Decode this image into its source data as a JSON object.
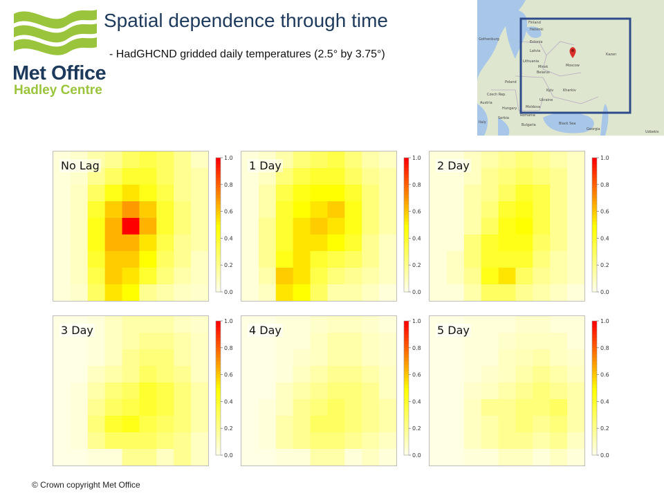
{
  "header": {
    "title": "Spatial dependence through time",
    "subtitle": "- HadGHCND gridded daily temperatures (2.5° by 3.75°)"
  },
  "logo": {
    "line1": "Met Office",
    "line2": "Hadley Centre",
    "colors": {
      "wave": "#9ac43c",
      "text": "#1d3a5c"
    }
  },
  "map": {
    "labels": [
      "Finland",
      "Helsinki",
      "Estonia",
      "Latvia",
      "Lithuania",
      "Belarus",
      "Minsk",
      "Moscow",
      "Kazan",
      "Poland",
      "Ukraine",
      "Kyiv",
      "Kharkiv",
      "Moldova",
      "Romania",
      "Hungary",
      "Serbia",
      "Bulgaria",
      "Italy",
      "Black Sea",
      "Georgia",
      "Gothenburg",
      "Czech Rep.",
      "Austria",
      "Uzbekis"
    ],
    "region_color": "#2d4a8a",
    "marker_color": "#d9302c"
  },
  "chart_data": {
    "type": "heatmap",
    "colormap": {
      "low_color": "#ffffff",
      "mid_color": "#ffff00",
      "high_color": "#ff0000"
    },
    "colorbar_ticks": [
      "0.0",
      "0.2",
      "0.4",
      "0.6",
      "0.8",
      "1.0"
    ],
    "panels": [
      {
        "label": "No Lag",
        "values": [
          [
            0.05,
            0.08,
            0.15,
            0.2,
            0.3,
            0.35,
            0.3,
            0.2,
            0.1
          ],
          [
            0.05,
            0.08,
            0.2,
            0.3,
            0.4,
            0.4,
            0.3,
            0.2,
            0.15
          ],
          [
            0.05,
            0.1,
            0.3,
            0.45,
            0.55,
            0.45,
            0.35,
            0.2,
            0.15
          ],
          [
            0.05,
            0.1,
            0.4,
            0.6,
            0.7,
            0.6,
            0.4,
            0.25,
            0.15
          ],
          [
            0.05,
            0.1,
            0.45,
            0.65,
            1.0,
            0.65,
            0.4,
            0.25,
            0.15
          ],
          [
            0.05,
            0.1,
            0.45,
            0.65,
            0.65,
            0.55,
            0.35,
            0.2,
            0.15
          ],
          [
            0.05,
            0.1,
            0.4,
            0.6,
            0.6,
            0.5,
            0.3,
            0.2,
            0.1
          ],
          [
            0.05,
            0.1,
            0.35,
            0.6,
            0.55,
            0.4,
            0.25,
            0.15,
            0.1
          ],
          [
            0.05,
            0.08,
            0.3,
            0.55,
            0.5,
            0.2,
            0.15,
            0.1,
            0.08
          ]
        ]
      },
      {
        "label": "1 Day",
        "values": [
          [
            0.05,
            0.08,
            0.15,
            0.25,
            0.3,
            0.35,
            0.25,
            0.15,
            0.1
          ],
          [
            0.05,
            0.1,
            0.25,
            0.35,
            0.4,
            0.4,
            0.3,
            0.2,
            0.15
          ],
          [
            0.05,
            0.15,
            0.35,
            0.45,
            0.5,
            0.5,
            0.4,
            0.25,
            0.15
          ],
          [
            0.05,
            0.15,
            0.4,
            0.5,
            0.55,
            0.6,
            0.45,
            0.25,
            0.15
          ],
          [
            0.05,
            0.2,
            0.4,
            0.55,
            0.6,
            0.55,
            0.45,
            0.25,
            0.15
          ],
          [
            0.05,
            0.2,
            0.4,
            0.55,
            0.55,
            0.5,
            0.4,
            0.2,
            0.1
          ],
          [
            0.05,
            0.2,
            0.45,
            0.55,
            0.4,
            0.35,
            0.3,
            0.2,
            0.1
          ],
          [
            0.05,
            0.15,
            0.6,
            0.55,
            0.35,
            0.25,
            0.2,
            0.15,
            0.1
          ],
          [
            0.05,
            0.1,
            0.55,
            0.5,
            0.3,
            0.15,
            0.15,
            0.1,
            0.05
          ]
        ]
      },
      {
        "label": "2 Day",
        "values": [
          [
            0.05,
            0.05,
            0.1,
            0.15,
            0.2,
            0.25,
            0.2,
            0.15,
            0.1
          ],
          [
            0.05,
            0.05,
            0.1,
            0.2,
            0.25,
            0.3,
            0.25,
            0.2,
            0.1
          ],
          [
            0.05,
            0.05,
            0.15,
            0.2,
            0.3,
            0.4,
            0.35,
            0.2,
            0.1
          ],
          [
            0.05,
            0.05,
            0.15,
            0.25,
            0.4,
            0.45,
            0.35,
            0.2,
            0.1
          ],
          [
            0.05,
            0.05,
            0.15,
            0.3,
            0.45,
            0.5,
            0.35,
            0.2,
            0.1
          ],
          [
            0.05,
            0.05,
            0.25,
            0.4,
            0.45,
            0.45,
            0.3,
            0.2,
            0.1
          ],
          [
            0.05,
            0.1,
            0.25,
            0.4,
            0.4,
            0.4,
            0.25,
            0.15,
            0.1
          ],
          [
            0.05,
            0.1,
            0.2,
            0.45,
            0.55,
            0.3,
            0.2,
            0.15,
            0.1
          ],
          [
            0.05,
            0.05,
            0.15,
            0.3,
            0.3,
            0.2,
            0.15,
            0.1,
            0.05
          ]
        ]
      },
      {
        "label": "3 Day",
        "values": [
          [
            0.03,
            0.03,
            0.05,
            0.1,
            0.15,
            0.15,
            0.15,
            0.1,
            0.08
          ],
          [
            0.03,
            0.03,
            0.05,
            0.1,
            0.15,
            0.2,
            0.2,
            0.15,
            0.1
          ],
          [
            0.03,
            0.03,
            0.05,
            0.1,
            0.2,
            0.25,
            0.25,
            0.15,
            0.1
          ],
          [
            0.03,
            0.03,
            0.1,
            0.15,
            0.2,
            0.3,
            0.25,
            0.2,
            0.1
          ],
          [
            0.03,
            0.05,
            0.15,
            0.25,
            0.3,
            0.4,
            0.35,
            0.25,
            0.15
          ],
          [
            0.03,
            0.05,
            0.2,
            0.3,
            0.35,
            0.4,
            0.35,
            0.25,
            0.15
          ],
          [
            0.03,
            0.05,
            0.25,
            0.4,
            0.45,
            0.35,
            0.3,
            0.25,
            0.15
          ],
          [
            0.03,
            0.05,
            0.2,
            0.3,
            0.3,
            0.3,
            0.25,
            0.2,
            0.1
          ],
          [
            0.03,
            0.03,
            0.05,
            0.05,
            0.2,
            0.2,
            0.1,
            0.2,
            0.1
          ]
        ]
      },
      {
        "label": "4 Day",
        "values": [
          [
            0.03,
            0.03,
            0.05,
            0.05,
            0.08,
            0.1,
            0.1,
            0.08,
            0.05
          ],
          [
            0.03,
            0.03,
            0.05,
            0.05,
            0.1,
            0.15,
            0.15,
            0.1,
            0.08
          ],
          [
            0.03,
            0.03,
            0.05,
            0.08,
            0.1,
            0.15,
            0.15,
            0.1,
            0.08
          ],
          [
            0.03,
            0.03,
            0.05,
            0.1,
            0.15,
            0.2,
            0.2,
            0.15,
            0.1
          ],
          [
            0.03,
            0.03,
            0.1,
            0.15,
            0.2,
            0.25,
            0.25,
            0.2,
            0.1
          ],
          [
            0.03,
            0.05,
            0.1,
            0.2,
            0.25,
            0.3,
            0.25,
            0.2,
            0.15
          ],
          [
            0.03,
            0.05,
            0.15,
            0.2,
            0.3,
            0.3,
            0.25,
            0.2,
            0.15
          ],
          [
            0.03,
            0.05,
            0.15,
            0.2,
            0.25,
            0.25,
            0.2,
            0.15,
            0.1
          ],
          [
            0.03,
            0.03,
            0.05,
            0.05,
            0.15,
            0.15,
            0.05,
            0.1,
            0.05
          ]
        ]
      },
      {
        "label": "5 Day",
        "values": [
          [
            0.03,
            0.03,
            0.05,
            0.05,
            0.05,
            0.08,
            0.08,
            0.05,
            0.05
          ],
          [
            0.03,
            0.03,
            0.05,
            0.05,
            0.08,
            0.1,
            0.1,
            0.1,
            0.05
          ],
          [
            0.03,
            0.03,
            0.05,
            0.05,
            0.1,
            0.12,
            0.15,
            0.1,
            0.08
          ],
          [
            0.03,
            0.03,
            0.05,
            0.08,
            0.1,
            0.15,
            0.2,
            0.15,
            0.1
          ],
          [
            0.03,
            0.03,
            0.08,
            0.1,
            0.15,
            0.2,
            0.25,
            0.2,
            0.15
          ],
          [
            0.03,
            0.03,
            0.1,
            0.2,
            0.2,
            0.25,
            0.25,
            0.3,
            0.15
          ],
          [
            0.03,
            0.03,
            0.1,
            0.15,
            0.2,
            0.25,
            0.2,
            0.25,
            0.15
          ],
          [
            0.03,
            0.03,
            0.1,
            0.15,
            0.2,
            0.2,
            0.15,
            0.2,
            0.1
          ],
          [
            0.03,
            0.03,
            0.05,
            0.05,
            0.1,
            0.1,
            0.05,
            0.1,
            0.05
          ]
        ]
      }
    ]
  },
  "footer": {
    "copyright": "© Crown copyright   Met Office"
  }
}
